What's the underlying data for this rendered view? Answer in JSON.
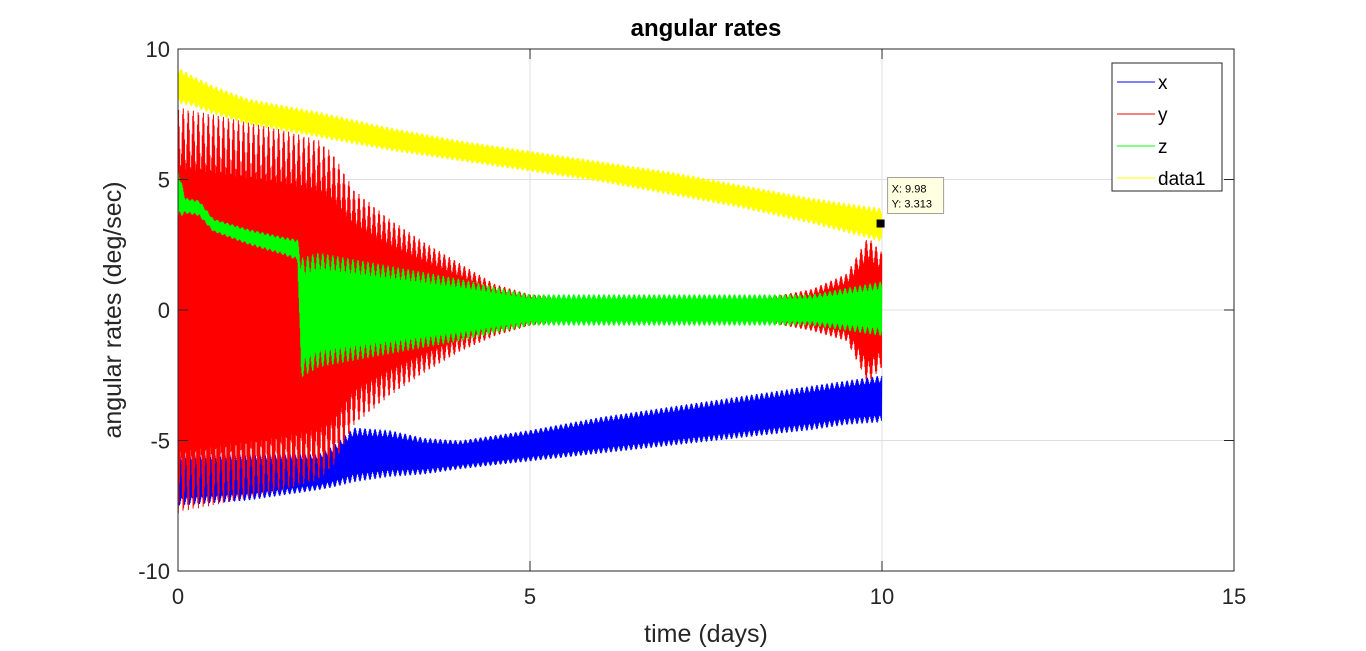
{
  "chart_data": {
    "type": "line",
    "title": "angular rates",
    "xlabel": "time (days)",
    "ylabel": "angular rates (deg/sec)",
    "xlim": [
      0,
      15
    ],
    "ylim": [
      -10,
      10
    ],
    "xticks": [
      0,
      5,
      10,
      15
    ],
    "yticks": [
      -10,
      -5,
      0,
      5,
      10
    ],
    "xtick_labels": [
      "0",
      "5",
      "10",
      "15"
    ],
    "ytick_labels": [
      "-10",
      "-5",
      "0",
      "5",
      "10"
    ],
    "grid": true,
    "legend_position": "top-right",
    "series": [
      {
        "name": "x",
        "color": "#0000ff",
        "style": "oscillating band",
        "x": [
          0,
          0.5,
          1,
          1.5,
          2,
          2.2,
          2.5,
          3,
          3.5,
          4,
          5,
          6,
          7,
          8,
          9,
          9.5,
          10
        ],
        "upper": [
          -5.5,
          -5.5,
          -5.5,
          -5.5,
          -5.5,
          -5.2,
          -4.5,
          -4.6,
          -4.9,
          -5.0,
          -4.6,
          -4.1,
          -3.7,
          -3.3,
          -2.9,
          -2.7,
          -2.5
        ],
        "lower": [
          -7.5,
          -7.4,
          -7.3,
          -7.1,
          -6.9,
          -6.8,
          -6.6,
          -6.4,
          -6.3,
          -6.1,
          -5.8,
          -5.5,
          -5.2,
          -4.9,
          -4.6,
          -4.4,
          -4.3
        ]
      },
      {
        "name": "y",
        "color": "#ff0000",
        "style": "oscillating band",
        "x": [
          0,
          0.1,
          0.5,
          1,
          1.5,
          2,
          2.2,
          2.5,
          3,
          3.5,
          4,
          4.5,
          5,
          6,
          7,
          8,
          9,
          9.5,
          9.8,
          10
        ],
        "upper": [
          7.8,
          7.7,
          7.5,
          7.2,
          6.9,
          6.5,
          6.0,
          4.6,
          3.5,
          2.6,
          1.8,
          1.0,
          0.6,
          0.3,
          0.3,
          0.3,
          0.8,
          1.4,
          2.8,
          2.2
        ],
        "lower": [
          -7.8,
          -7.7,
          -7.5,
          -7.2,
          -6.9,
          -6.5,
          -6.0,
          -4.4,
          -3.3,
          -2.4,
          -1.6,
          -1.0,
          -0.6,
          -0.3,
          -0.3,
          -0.3,
          -0.8,
          -1.2,
          -2.8,
          -2.2
        ]
      },
      {
        "name": "z",
        "color": "#00ff00",
        "style": "oscillating band",
        "x": [
          0,
          0.1,
          0.3,
          0.5,
          1,
          1.5,
          1.7,
          1.75,
          2,
          3,
          4,
          5,
          6,
          7,
          8,
          9,
          10
        ],
        "upper": [
          5.5,
          4.3,
          4.2,
          3.5,
          3.1,
          2.8,
          2.7,
          2.0,
          2.2,
          1.7,
          1.2,
          0.6,
          0.6,
          0.6,
          0.6,
          0.6,
          1.1
        ],
        "lower": [
          3.5,
          3.7,
          3.6,
          3.0,
          2.5,
          2.1,
          1.9,
          -2.6,
          -2.2,
          -1.7,
          -1.2,
          -0.6,
          -0.6,
          -0.6,
          -0.6,
          -0.6,
          -1.0
        ]
      },
      {
        "name": "data1",
        "color": "#ffff00",
        "style": "oscillating band",
        "x": [
          0,
          0.2,
          0.5,
          1,
          2,
          3,
          4,
          5,
          6,
          7,
          8,
          9,
          10
        ],
        "upper": [
          9.3,
          9.0,
          8.6,
          8.1,
          7.6,
          7.0,
          6.5,
          6.1,
          5.7,
          5.3,
          4.8,
          4.3,
          3.9
        ],
        "lower": [
          7.9,
          7.8,
          7.5,
          7.1,
          6.6,
          6.1,
          5.7,
          5.3,
          4.9,
          4.4,
          3.9,
          3.3,
          2.6
        ]
      }
    ],
    "datatip": {
      "x": 9.98,
      "y": 3.313,
      "x_text": "X: 9.98",
      "y_text": "Y: 3.313"
    }
  }
}
